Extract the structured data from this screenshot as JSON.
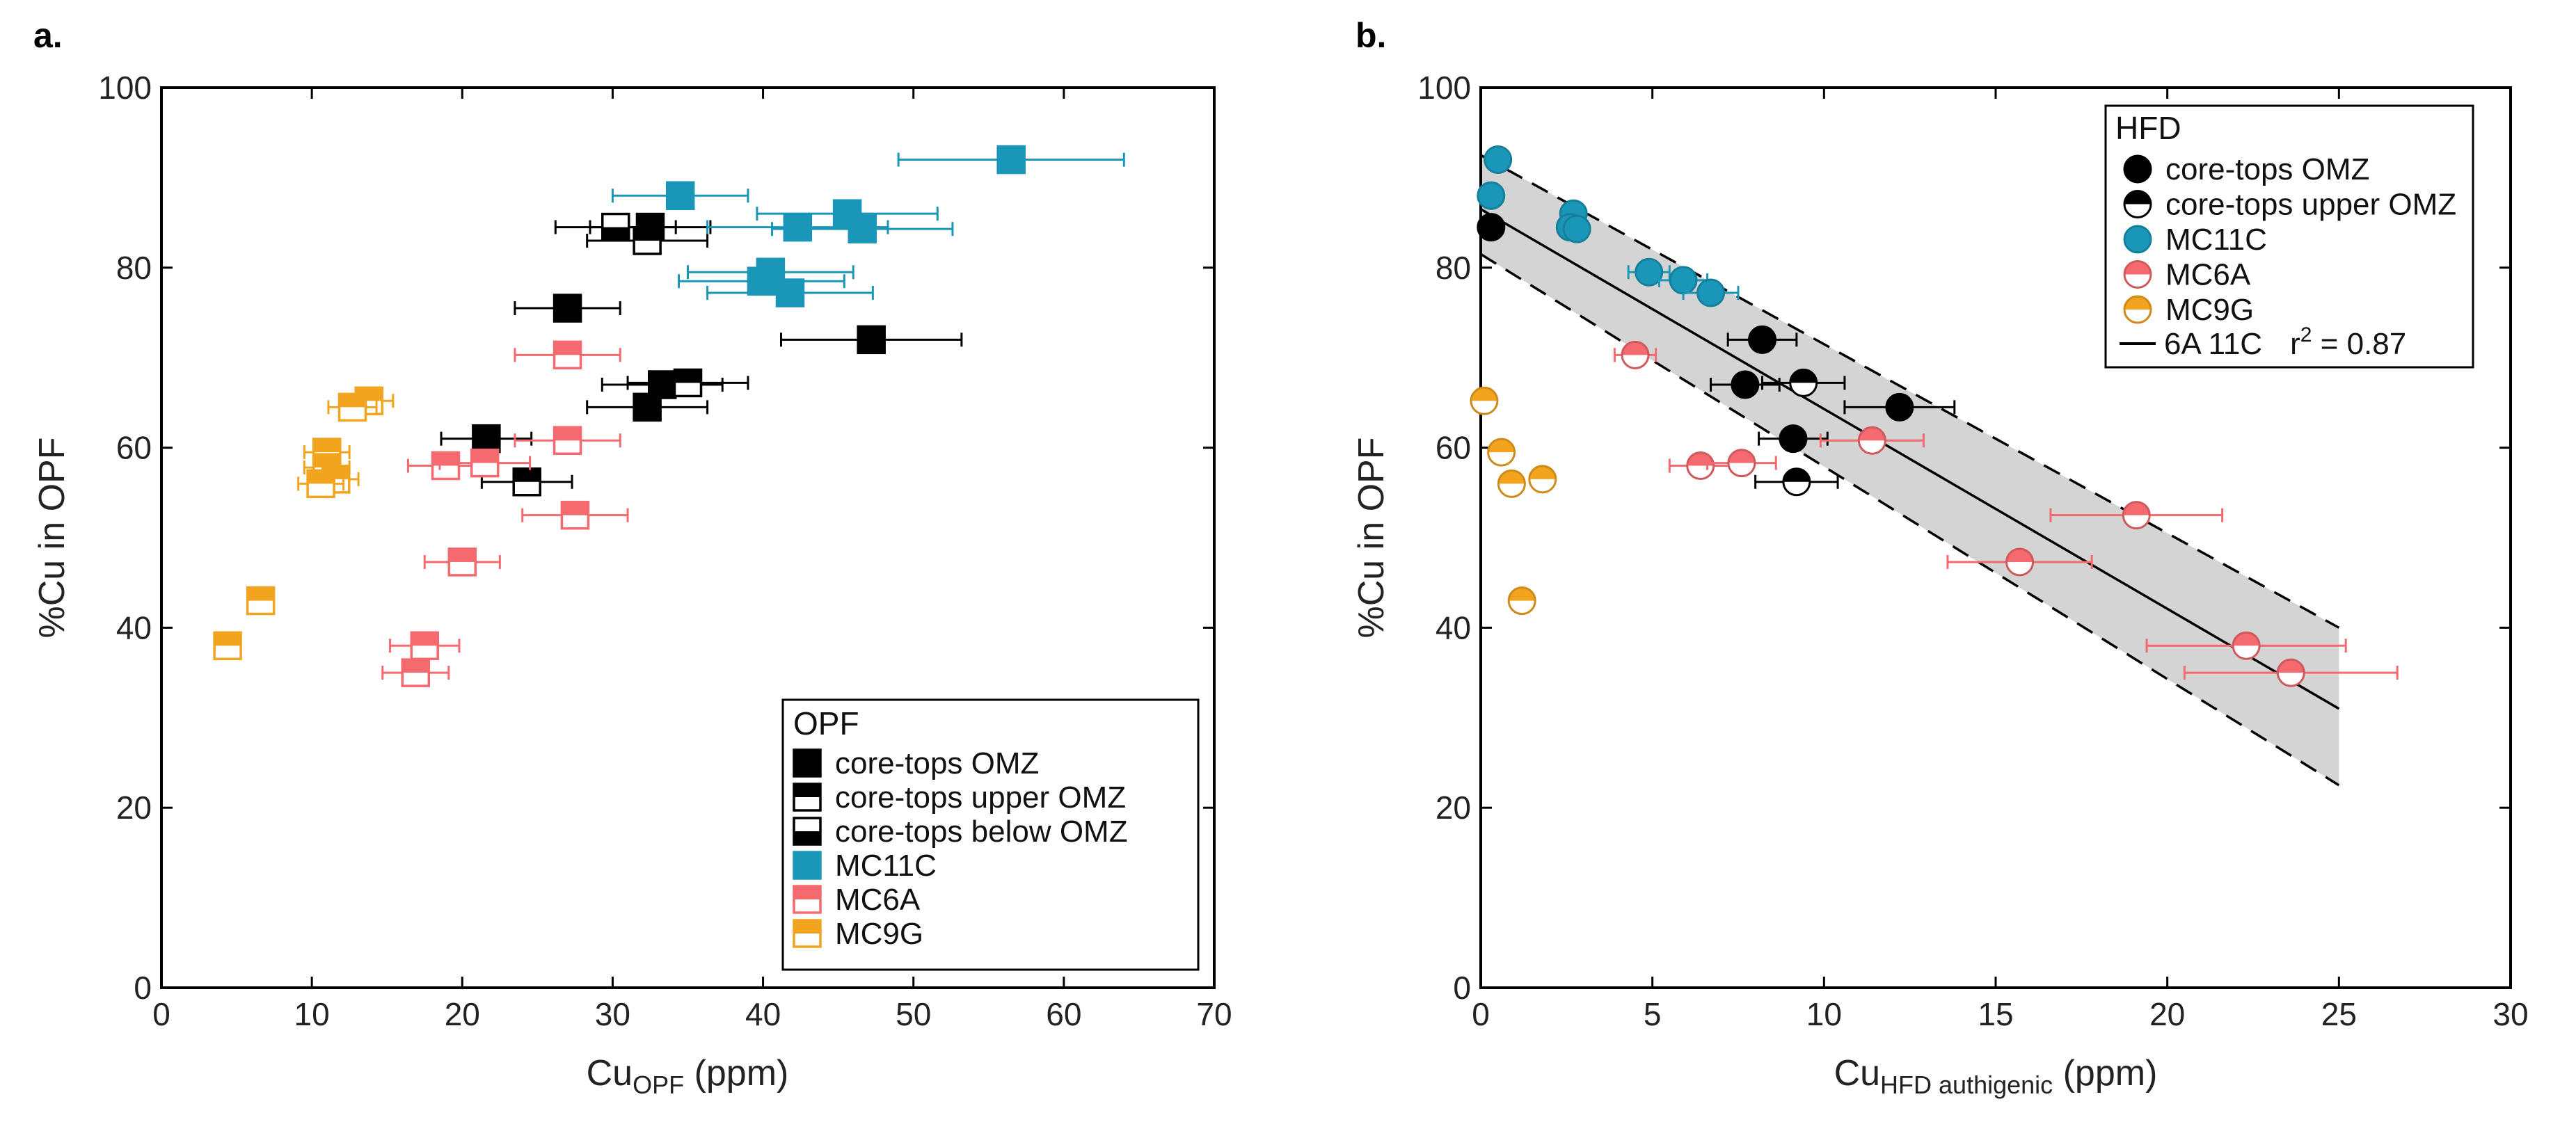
{
  "chart_data": [
    {
      "id": "a",
      "type": "scatter",
      "panel_label": "a.",
      "xlabel_main": "Cu",
      "xlabel_sub": "OPF",
      "xlabel_unit": " (ppm)",
      "ylabel": "%Cu in OPF",
      "xlim": [
        0,
        70
      ],
      "ylim": [
        0,
        100
      ],
      "xticks": [
        0,
        10,
        20,
        30,
        40,
        50,
        60,
        70
      ],
      "yticks": [
        0,
        20,
        40,
        60,
        80,
        100
      ],
      "legend_title": "OPF",
      "legend_position": "bottom-right",
      "series": [
        {
          "name": "core-tops OMZ",
          "color": "#000000",
          "marker": "square",
          "fill": "full",
          "points": [
            {
              "x": 32.5,
              "y": 84.5,
              "xerr": 4.0
            },
            {
              "x": 27.0,
              "y": 75.5,
              "xerr": 3.5
            },
            {
              "x": 47.2,
              "y": 72.0,
              "xerr": 6.0
            },
            {
              "x": 33.3,
              "y": 67.0,
              "xerr": 4.0
            },
            {
              "x": 32.3,
              "y": 64.5,
              "xerr": 4.0
            },
            {
              "x": 21.6,
              "y": 61.0,
              "xerr": 3.0
            }
          ]
        },
        {
          "name": "core-tops upper OMZ",
          "color": "#000000",
          "marker": "square",
          "fill": "top",
          "points": [
            {
              "x": 32.3,
              "y": 83.0,
              "xerr": 4.0
            },
            {
              "x": 35.0,
              "y": 67.2,
              "xerr": 4.0
            },
            {
              "x": 24.3,
              "y": 56.2,
              "xerr": 3.0
            }
          ]
        },
        {
          "name": "core-tops below OMZ",
          "color": "#000000",
          "marker": "square",
          "fill": "bottom",
          "points": [
            {
              "x": 30.2,
              "y": 84.5,
              "xerr": 4.0
            }
          ]
        },
        {
          "name": "MC11C",
          "color": "#1a97b8",
          "marker": "square",
          "fill": "full",
          "points": [
            {
              "x": 34.5,
              "y": 88.0,
              "xerr": 4.5
            },
            {
              "x": 56.5,
              "y": 92.0,
              "xerr": 7.5
            },
            {
              "x": 45.6,
              "y": 86.0,
              "xerr": 6.0
            },
            {
              "x": 42.3,
              "y": 84.5,
              "xerr": 6.0
            },
            {
              "x": 46.6,
              "y": 84.3,
              "xerr": 6.0
            },
            {
              "x": 40.5,
              "y": 79.5,
              "xerr": 5.5
            },
            {
              "x": 39.9,
              "y": 78.5,
              "xerr": 5.5
            },
            {
              "x": 41.8,
              "y": 77.2,
              "xerr": 5.5
            }
          ]
        },
        {
          "name": "MC6A",
          "color": "#f46a6e",
          "marker": "square",
          "fill": "top",
          "points": [
            {
              "x": 27.0,
              "y": 70.3,
              "xerr": 3.5
            },
            {
              "x": 27.0,
              "y": 60.8,
              "xerr": 3.5
            },
            {
              "x": 18.9,
              "y": 58.0,
              "xerr": 2.5
            },
            {
              "x": 21.5,
              "y": 58.3,
              "xerr": 3.0
            },
            {
              "x": 27.5,
              "y": 52.5,
              "xerr": 3.5
            },
            {
              "x": 20.0,
              "y": 47.3,
              "xerr": 2.5
            },
            {
              "x": 17.5,
              "y": 38.0,
              "xerr": 2.3
            },
            {
              "x": 16.9,
              "y": 35.0,
              "xerr": 2.2
            }
          ]
        },
        {
          "name": "MC9G",
          "color": "#f2a41f",
          "marker": "square",
          "fill": "top",
          "points": [
            {
              "x": 13.8,
              "y": 65.2,
              "xerr": 1.6
            },
            {
              "x": 12.7,
              "y": 64.5,
              "xerr": 1.6
            },
            {
              "x": 11.0,
              "y": 59.5,
              "xerr": 1.5
            },
            {
              "x": 11.0,
              "y": 57.8,
              "xerr": 1.5
            },
            {
              "x": 11.6,
              "y": 56.5,
              "xerr": 1.5
            },
            {
              "x": 10.6,
              "y": 56.0,
              "xerr": 1.5
            },
            {
              "x": 6.6,
              "y": 43.0,
              "xerr": 0
            },
            {
              "x": 4.4,
              "y": 38.0,
              "xerr": 0
            }
          ]
        }
      ]
    },
    {
      "id": "b",
      "type": "scatter",
      "panel_label": "b.",
      "xlabel_main": "Cu",
      "xlabel_sub": "HFD authigenic",
      "xlabel_unit": " (ppm)",
      "ylabel": "%Cu in OPF",
      "xlim": [
        0,
        30
      ],
      "ylim": [
        0,
        100
      ],
      "xticks": [
        0,
        5,
        10,
        15,
        20,
        25,
        30
      ],
      "yticks": [
        0,
        20,
        40,
        60,
        80,
        100
      ],
      "legend_title": "HFD",
      "legend_position": "top-right",
      "fit": {
        "label": "6A 11C",
        "r2_label": "r",
        "r2_exp": "2",
        "r2_value": " = 0.87",
        "x_range": [
          0,
          25
        ],
        "intercept": 86.5,
        "slope": -2.22,
        "band_upper": [
          [
            0,
            92.5
          ],
          [
            25,
            40.0
          ]
        ],
        "band_lower": [
          [
            0,
            81.5
          ],
          [
            25,
            22.5
          ]
        ]
      },
      "series": [
        {
          "name": "core-tops OMZ",
          "color": "#000000",
          "marker": "circle",
          "fill": "full",
          "points": [
            {
              "x": 0.3,
              "y": 84.5,
              "xerr": 0
            },
            {
              "x": 8.2,
              "y": 72.0,
              "xerr": 1.0
            },
            {
              "x": 7.7,
              "y": 67.0,
              "xerr": 1.0
            },
            {
              "x": 12.2,
              "y": 64.5,
              "xerr": 1.6
            },
            {
              "x": 9.1,
              "y": 61.0,
              "xerr": 1.0
            }
          ]
        },
        {
          "name": "core-tops upper OMZ",
          "color": "#000000",
          "marker": "circle",
          "fill": "top",
          "points": [
            {
              "x": 9.4,
              "y": 67.2,
              "xerr": 1.2
            },
            {
              "x": 9.2,
              "y": 56.2,
              "xerr": 1.2
            }
          ]
        },
        {
          "name": "MC11C",
          "color": "#1a97b8",
          "marker": "circle",
          "fill": "full",
          "points": [
            {
              "x": 0.5,
              "y": 92.0,
              "xerr": 0
            },
            {
              "x": 0.3,
              "y": 88.0,
              "xerr": 0
            },
            {
              "x": 2.7,
              "y": 86.0,
              "xerr": 0.3
            },
            {
              "x": 2.6,
              "y": 84.5,
              "xerr": 0.3
            },
            {
              "x": 2.8,
              "y": 84.3,
              "xerr": 0.3
            },
            {
              "x": 4.9,
              "y": 79.5,
              "xerr": 0.6
            },
            {
              "x": 5.9,
              "y": 78.6,
              "xerr": 0.7
            },
            {
              "x": 6.7,
              "y": 77.2,
              "xerr": 0.8
            }
          ]
        },
        {
          "name": "MC6A",
          "color": "#f46a6e",
          "marker": "circle",
          "fill": "top",
          "points": [
            {
              "x": 4.5,
              "y": 70.3,
              "xerr": 0.6
            },
            {
              "x": 11.4,
              "y": 60.8,
              "xerr": 1.5
            },
            {
              "x": 6.4,
              "y": 58.0,
              "xerr": 0.9
            },
            {
              "x": 7.6,
              "y": 58.3,
              "xerr": 1.0
            },
            {
              "x": 19.1,
              "y": 52.5,
              "xerr": 2.5
            },
            {
              "x": 15.7,
              "y": 47.3,
              "xerr": 2.1
            },
            {
              "x": 22.3,
              "y": 38.0,
              "xerr": 2.9
            },
            {
              "x": 23.6,
              "y": 35.0,
              "xerr": 3.1
            }
          ]
        },
        {
          "name": "MC9G",
          "color": "#f2a41f",
          "marker": "circle",
          "fill": "top",
          "points": [
            {
              "x": 0.1,
              "y": 65.2,
              "xerr": 0
            },
            {
              "x": 0.6,
              "y": 59.5,
              "xerr": 0
            },
            {
              "x": 0.9,
              "y": 56.0,
              "xerr": 0
            },
            {
              "x": 1.8,
              "y": 56.5,
              "xerr": 0
            },
            {
              "x": 1.2,
              "y": 43.0,
              "xerr": 0
            }
          ]
        }
      ]
    }
  ]
}
